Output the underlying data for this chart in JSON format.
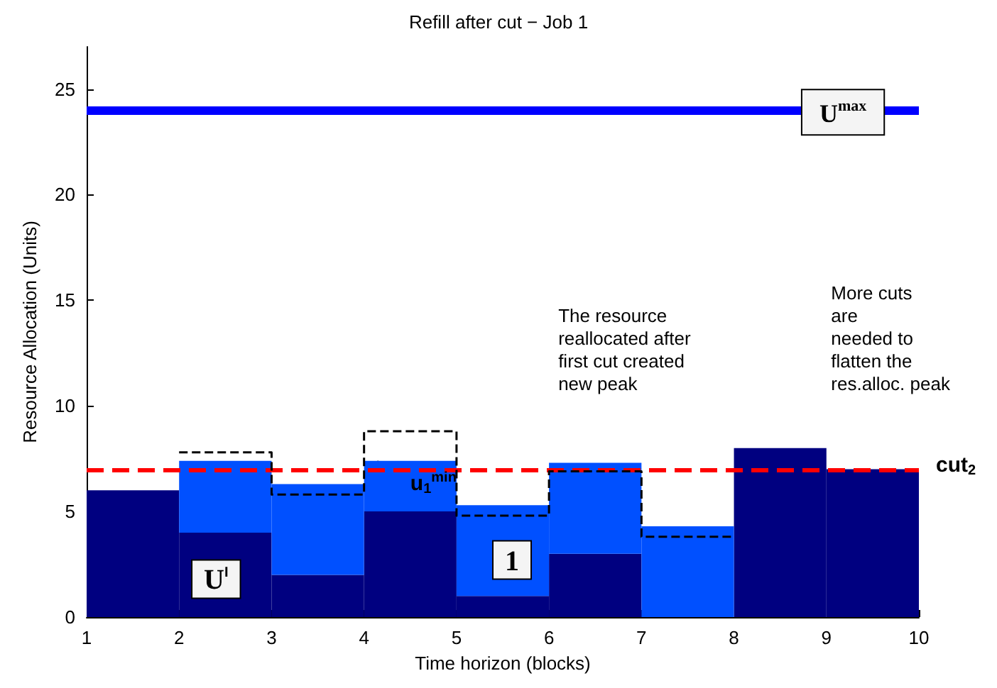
{
  "chart_data": {
    "type": "bar",
    "title": "Refill after cut − Job 1",
    "xlabel": "Time horizon (blocks)",
    "ylabel": "Resource Allocation (Units)",
    "x": [
      1.5,
      2.5,
      3.5,
      4.5,
      5.5,
      6.5,
      7.5,
      8.5,
      9.5
    ],
    "stacked": true,
    "series": [
      {
        "color": "#000080",
        "values": [
          6,
          4,
          2,
          5,
          1,
          3,
          0,
          8,
          7
        ]
      },
      {
        "color": "#0050ff",
        "values": [
          0,
          3.4,
          4.3,
          2.4,
          4.3,
          4.3,
          4.3,
          0,
          0
        ]
      },
      {
        "type": "step",
        "color": "#000000",
        "line_style": "dashed",
        "x": [
          2,
          3,
          4,
          5,
          6,
          7,
          8
        ],
        "values": [
          7.8,
          5.8,
          8.8,
          4.8,
          6.9,
          3.8,
          3.8
        ]
      }
    ],
    "xlim": [
      1,
      10
    ],
    "ylim": [
      0,
      27
    ],
    "xticks": [
      1,
      2,
      3,
      4,
      5,
      6,
      7,
      8,
      9,
      10
    ],
    "yticks": [
      0,
      5,
      10,
      15,
      20,
      25
    ],
    "grid": false,
    "ref_lines": [
      {
        "axis": "y",
        "value": 24,
        "label": "U$^{max}$",
        "color": "#0000ff",
        "line_style": "solid"
      },
      {
        "axis": "y",
        "value": 7,
        "label": "cut$_{2}$",
        "color": "#ff0000",
        "line_style": "dashed"
      }
    ],
    "annotations": [
      {
        "text": "U$^{I}$",
        "x": 2.4,
        "y": 1.8
      },
      {
        "text": "1",
        "x": 5.6,
        "y": 2.7
      },
      "u$_{1}$$^{min}$",
      "The resource\nreallocated after\nfirst cut created\nnew peak",
      "More cuts\nare\nneeded to\nflatten the\nres.alloc. peak"
    ]
  }
}
